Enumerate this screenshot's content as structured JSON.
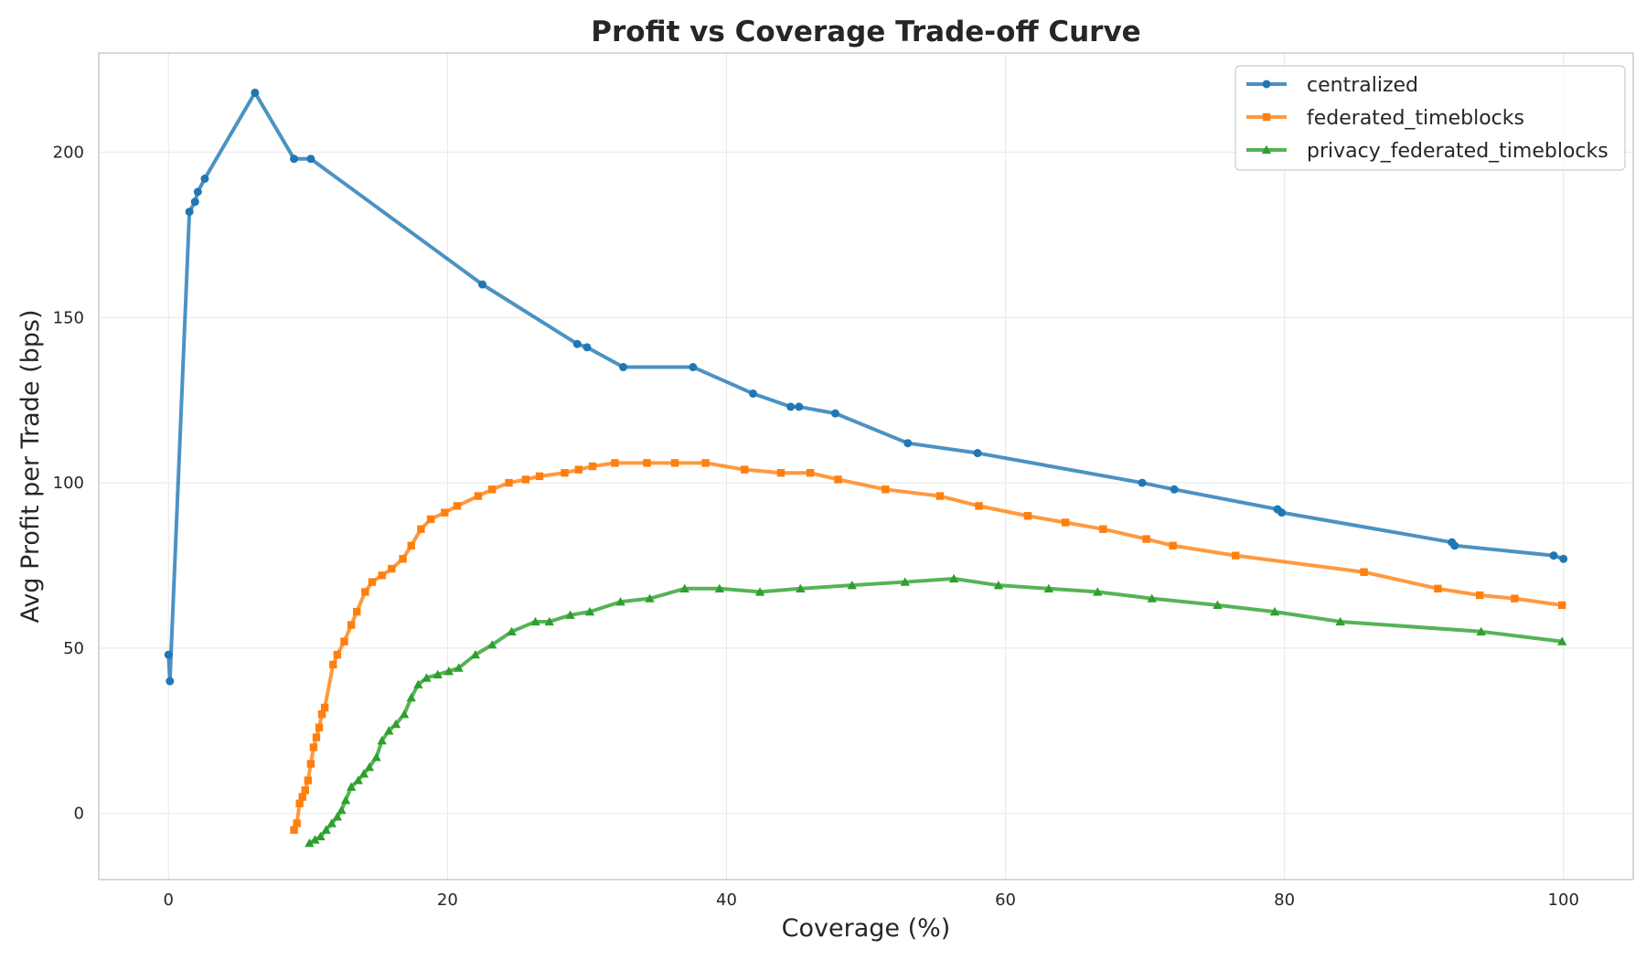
{
  "chart_data": {
    "type": "line",
    "title": "Profit vs Coverage Trade-off Curve",
    "xlabel": "Coverage (%)",
    "ylabel": "Avg Profit per Trade (bps)",
    "xlim": [
      -5,
      105
    ],
    "ylim": [
      -20,
      230
    ],
    "xticks": [
      0,
      20,
      40,
      60,
      80,
      100
    ],
    "yticks": [
      0,
      50,
      100,
      150,
      200
    ],
    "grid": true,
    "legend_position": "top-right",
    "series": [
      {
        "name": "centralized",
        "color": "#1f77b4",
        "marker": "circle",
        "x": [
          0.0,
          0.1,
          1.5,
          1.9,
          2.1,
          2.6,
          6.2,
          9.0,
          10.2,
          22.5,
          29.3,
          30.0,
          32.6,
          37.6,
          41.9,
          44.6,
          45.2,
          47.8,
          53.0,
          58.0,
          69.8,
          72.1,
          79.5,
          79.8,
          92.0,
          92.2,
          99.3,
          100.0
        ],
        "y": [
          48,
          40,
          182,
          185,
          188,
          192,
          218,
          198,
          198,
          160,
          142,
          141,
          135,
          135,
          127,
          123,
          123,
          121,
          112,
          109,
          100,
          98,
          92,
          91,
          82,
          81,
          78,
          77
        ]
      },
      {
        "name": "federated_timeblocks",
        "color": "#ff7f0e",
        "marker": "square",
        "x": [
          9.0,
          9.2,
          9.4,
          9.6,
          9.8,
          10.0,
          10.2,
          10.4,
          10.6,
          10.8,
          11.0,
          11.2,
          11.8,
          12.1,
          12.6,
          13.1,
          13.5,
          14.1,
          14.6,
          15.3,
          16.0,
          16.8,
          17.4,
          18.1,
          18.8,
          19.8,
          20.7,
          22.2,
          23.2,
          24.4,
          25.6,
          26.6,
          28.4,
          29.4,
          30.4,
          32.0,
          34.3,
          36.3,
          38.5,
          41.3,
          43.9,
          46.0,
          48.0,
          51.4,
          55.3,
          58.1,
          61.6,
          64.3,
          67.0,
          70.1,
          72.0,
          76.5,
          85.7,
          91.0,
          94.0,
          96.5,
          99.9
        ],
        "y": [
          -5,
          -3,
          3,
          5,
          7,
          10,
          15,
          20,
          23,
          26,
          30,
          32,
          45,
          48,
          52,
          57,
          61,
          67,
          70,
          72,
          74,
          77,
          81,
          86,
          89,
          91,
          93,
          96,
          98,
          100,
          101,
          102,
          103,
          104,
          105,
          106,
          106,
          106,
          106,
          104,
          103,
          103,
          101,
          98,
          96,
          93,
          90,
          88,
          86,
          83,
          81,
          78,
          73,
          68,
          66,
          65,
          63
        ]
      },
      {
        "name": "privacy_federated_timeblocks",
        "color": "#2ca02c",
        "marker": "triangle",
        "x": [
          10.1,
          10.5,
          10.9,
          11.3,
          11.7,
          12.1,
          12.4,
          12.7,
          13.1,
          13.6,
          14.0,
          14.4,
          14.9,
          15.3,
          15.8,
          16.3,
          16.9,
          17.4,
          17.9,
          18.5,
          19.3,
          20.1,
          20.8,
          22.0,
          23.2,
          24.6,
          26.3,
          27.3,
          28.8,
          30.2,
          32.4,
          34.5,
          37.0,
          39.5,
          42.4,
          45.3,
          49.0,
          52.8,
          56.3,
          59.5,
          63.1,
          66.6,
          70.5,
          75.2,
          79.3,
          84.0,
          94.1,
          99.9
        ],
        "y": [
          -9,
          -8,
          -7,
          -5,
          -3,
          -1,
          1,
          4,
          8,
          10,
          12,
          14,
          17,
          22,
          25,
          27,
          30,
          35,
          39,
          41,
          42,
          43,
          44,
          48,
          51,
          55,
          58,
          58,
          60,
          61,
          64,
          65,
          68,
          68,
          67,
          68,
          69,
          70,
          71,
          69,
          68,
          67,
          65,
          63,
          61,
          58,
          55,
          52
        ]
      }
    ]
  }
}
